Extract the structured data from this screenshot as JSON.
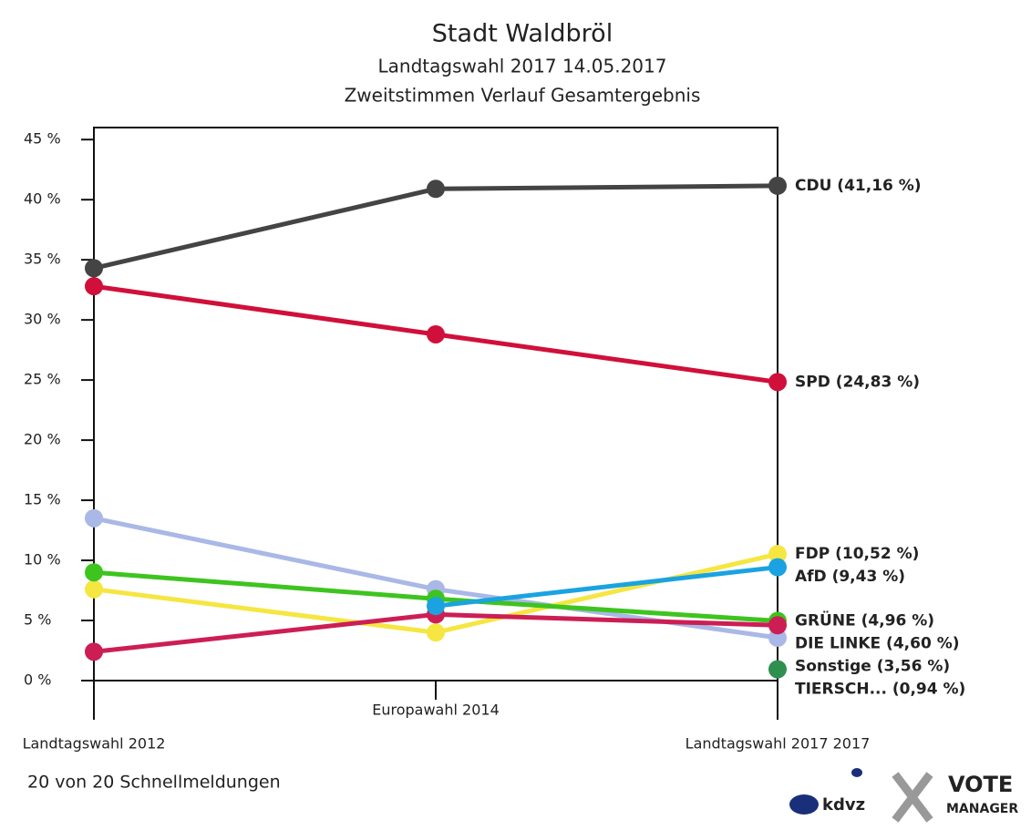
{
  "chart_data": {
    "type": "line",
    "title": "Stadt Waldbröl",
    "subtitle": "Landtagswahl 2017 14.05.2017",
    "subtitle2": "Zweitstimmen Verlauf Gesamtergebnis",
    "footer": "20 von 20 Schnellmeldungen",
    "logo_left": "kdvz",
    "logo_right": [
      "VOTE",
      "MANAGER"
    ],
    "categories": [
      "Landtagswahl 2012",
      "Europawahl 2014",
      "Landtagswahl 2017 2017"
    ],
    "ylim": [
      0,
      46
    ],
    "yticks": [
      {
        "value": 0,
        "label": "0 %"
      },
      {
        "value": 5,
        "label": "5 %"
      },
      {
        "value": 10,
        "label": "10 %"
      },
      {
        "value": 15,
        "label": "15 %"
      },
      {
        "value": 20,
        "label": "20 %"
      },
      {
        "value": 25,
        "label": "25 %"
      },
      {
        "value": 30,
        "label": "30 %"
      },
      {
        "value": 35,
        "label": "35 %"
      },
      {
        "value": 40,
        "label": "40 %"
      },
      {
        "value": 45,
        "label": "45 %"
      }
    ],
    "series": [
      {
        "name": "Sonstige",
        "color": "#a9b8e6",
        "values": [
          13.5,
          7.6,
          3.56
        ],
        "label": "Sonstige (3,56 %)"
      },
      {
        "name": "FDP",
        "color": "#f5e642",
        "values": [
          7.6,
          4.0,
          10.52
        ],
        "label": "FDP (10,52 %)"
      },
      {
        "name": "GRÜNE",
        "color": "#3ec41e",
        "values": [
          9.0,
          6.8,
          4.96
        ],
        "label": "GRÜNE (4,96 %)"
      },
      {
        "name": "DIE LINKE",
        "color": "#cc1e55",
        "values": [
          2.4,
          5.5,
          4.6
        ],
        "label": "DIE LINKE (4,60 %)"
      },
      {
        "name": "AfD",
        "color": "#1aa3e0",
        "values": [
          null,
          6.2,
          9.43
        ],
        "label": "AfD (9,43 %)"
      },
      {
        "name": "TIERSCH...",
        "color": "#2f8f4f",
        "values": [
          null,
          null,
          0.94
        ],
        "label": "TIERSCH... (0,94 %)"
      },
      {
        "name": "SPD",
        "color": "#d0103a",
        "values": [
          32.8,
          28.8,
          24.83
        ],
        "label": "SPD (24,83 %)"
      },
      {
        "name": "CDU",
        "color": "#444444",
        "values": [
          34.3,
          40.9,
          41.16
        ],
        "label": "CDU (41,16 %)"
      }
    ]
  }
}
